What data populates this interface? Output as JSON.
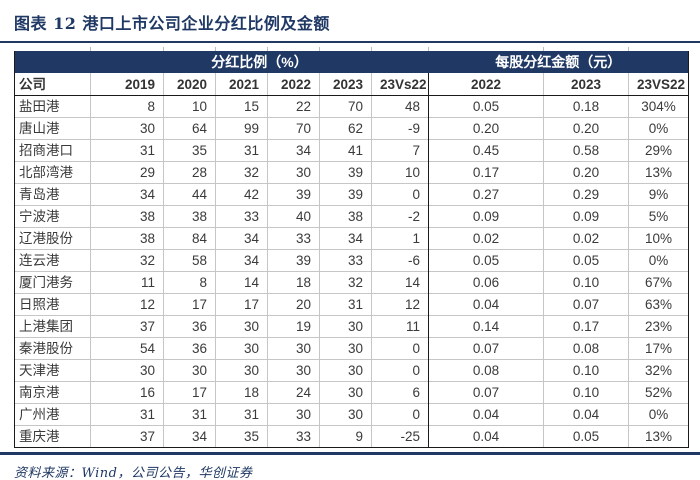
{
  "title": "图表 12  港口上市公司企业分红比例及金额",
  "colors": {
    "navy": "#1f3864",
    "band_text": "#ffffff",
    "grid_line": "#c6c6c6",
    "dark_border": "#1a1a1a",
    "body_text": "#3a3a3a"
  },
  "table": {
    "group_headers": [
      {
        "label": "分红比例（%）"
      },
      {
        "label": "每股分红金额（元）"
      }
    ],
    "columns": [
      "公司",
      "2019",
      "2020",
      "2021",
      "2022",
      "2023",
      "23Vs22",
      "2022",
      "2023",
      "23VS22"
    ],
    "rows": [
      [
        "盐田港",
        "8",
        "10",
        "15",
        "22",
        "70",
        "48",
        "0.05",
        "0.18",
        "304%"
      ],
      [
        "唐山港",
        "30",
        "64",
        "99",
        "70",
        "62",
        "-9",
        "0.20",
        "0.20",
        "0%"
      ],
      [
        "招商港口",
        "31",
        "35",
        "31",
        "34",
        "41",
        "7",
        "0.45",
        "0.58",
        "29%"
      ],
      [
        "北部湾港",
        "29",
        "28",
        "32",
        "30",
        "39",
        "10",
        "0.17",
        "0.20",
        "13%"
      ],
      [
        "青岛港",
        "34",
        "44",
        "42",
        "39",
        "39",
        "0",
        "0.27",
        "0.29",
        "9%"
      ],
      [
        "宁波港",
        "38",
        "38",
        "33",
        "40",
        "38",
        "-2",
        "0.09",
        "0.09",
        "5%"
      ],
      [
        "辽港股份",
        "38",
        "84",
        "34",
        "33",
        "34",
        "1",
        "0.02",
        "0.02",
        "10%"
      ],
      [
        "连云港",
        "32",
        "58",
        "34",
        "39",
        "33",
        "-6",
        "0.05",
        "0.05",
        "0%"
      ],
      [
        "厦门港务",
        "11",
        "8",
        "14",
        "18",
        "32",
        "14",
        "0.06",
        "0.10",
        "67%"
      ],
      [
        "日照港",
        "12",
        "17",
        "17",
        "20",
        "31",
        "12",
        "0.04",
        "0.07",
        "63%"
      ],
      [
        "上港集团",
        "37",
        "36",
        "30",
        "19",
        "30",
        "11",
        "0.14",
        "0.17",
        "23%"
      ],
      [
        "秦港股份",
        "54",
        "36",
        "30",
        "30",
        "30",
        "0",
        "0.07",
        "0.08",
        "17%"
      ],
      [
        "天津港",
        "30",
        "30",
        "30",
        "30",
        "30",
        "0",
        "0.08",
        "0.10",
        "32%"
      ],
      [
        "南京港",
        "16",
        "17",
        "18",
        "24",
        "30",
        "6",
        "0.07",
        "0.10",
        "52%"
      ],
      [
        "广州港",
        "31",
        "31",
        "31",
        "30",
        "30",
        "0",
        "0.04",
        "0.04",
        "0%"
      ],
      [
        "重庆港",
        "37",
        "34",
        "35",
        "33",
        "9",
        "-25",
        "0.04",
        "0.05",
        "13%"
      ]
    ]
  },
  "source": "资料来源：Wind，公司公告，华创证券"
}
